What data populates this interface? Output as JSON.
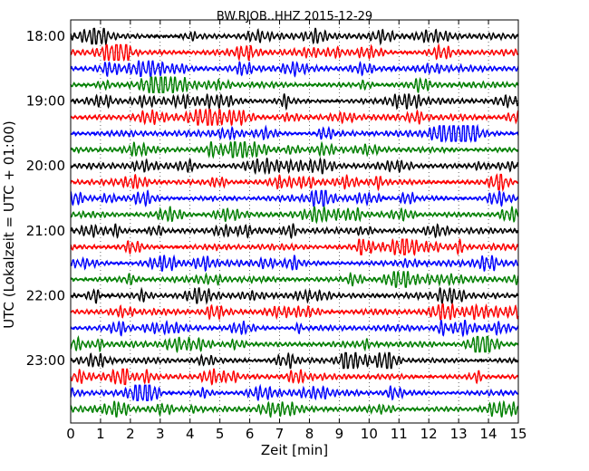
{
  "chart_data": {
    "type": "line",
    "title": "BW.RJOB..HHZ 2015-12-29",
    "xlabel": "Zeit  [min]",
    "ylabel": "UTC (Lokalzeit = UTC + 01:00)",
    "xlim": [
      0,
      15
    ],
    "x_ticks": [
      "0",
      "1",
      "2",
      "3",
      "4",
      "5",
      "6",
      "7",
      "8",
      "9",
      "10",
      "11",
      "12",
      "13",
      "14",
      "15"
    ],
    "y_tick_labels": [
      "18:00",
      "19:00",
      "20:00",
      "21:00",
      "22:00",
      "23:00"
    ],
    "trace_start_times": [
      "18:00",
      "18:15",
      "18:30",
      "18:45",
      "19:00",
      "19:15",
      "19:30",
      "19:45",
      "20:00",
      "20:15",
      "20:30",
      "20:45",
      "21:00",
      "21:15",
      "21:30",
      "21:45",
      "22:00",
      "22:15",
      "22:30",
      "22:45",
      "23:00",
      "23:15",
      "23:30",
      "23:45"
    ],
    "trace_colors": [
      "#000000",
      "#ff0000",
      "#0000ff",
      "#008000"
    ],
    "grid": true
  }
}
